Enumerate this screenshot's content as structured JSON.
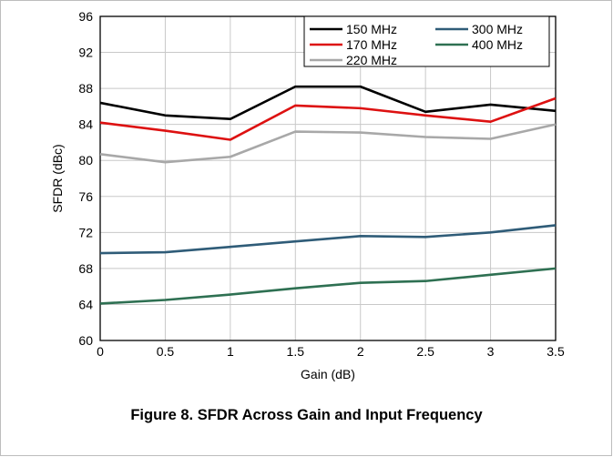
{
  "caption": "Figure 8. SFDR Across Gain and Input Frequency",
  "chart_data": {
    "type": "line",
    "xlabel": "Gain (dB)",
    "ylabel": "SFDR (dBc)",
    "xlim": [
      0,
      3.5
    ],
    "ylim": [
      60,
      96
    ],
    "x_ticks": [
      "0",
      "0.5",
      "1",
      "1.5",
      "2",
      "2.5",
      "3",
      "3.5"
    ],
    "y_ticks": [
      "60",
      "64",
      "68",
      "72",
      "76",
      "80",
      "84",
      "88",
      "92",
      "96"
    ],
    "grid": true,
    "legend_position": "top-right",
    "x": [
      0,
      0.5,
      1,
      1.5,
      2,
      2.5,
      3,
      3.5
    ],
    "series": [
      {
        "name": "150 MHz",
        "color": "#000000",
        "values": [
          86.4,
          85.0,
          84.6,
          88.2,
          88.2,
          85.4,
          86.2,
          85.5
        ]
      },
      {
        "name": "170 MHz",
        "color": "#dd1111",
        "values": [
          84.2,
          83.3,
          82.3,
          86.1,
          85.8,
          85.0,
          84.3,
          86.9
        ]
      },
      {
        "name": "220 MHz",
        "color": "#a8a8a8",
        "values": [
          80.7,
          79.8,
          80.4,
          83.2,
          83.1,
          82.6,
          82.4,
          84.0
        ]
      },
      {
        "name": "300 MHz",
        "color": "#2f5c78",
        "values": [
          69.7,
          69.8,
          70.4,
          71.0,
          71.6,
          71.5,
          72.0,
          72.8
        ]
      },
      {
        "name": "400 MHz",
        "color": "#2e7052",
        "values": [
          64.1,
          64.5,
          65.1,
          65.8,
          66.4,
          66.6,
          67.3,
          68.0
        ]
      }
    ]
  }
}
